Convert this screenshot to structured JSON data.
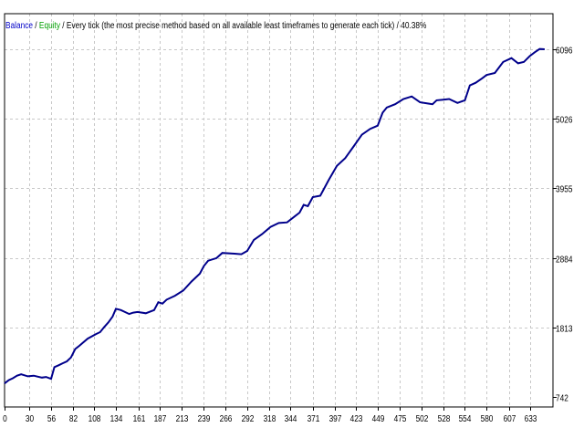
{
  "legend": {
    "balance_label": "Balance",
    "sep1": " / ",
    "equity_label": "Equity",
    "sep2": " / ",
    "model_text": "Every tick (the most precise method based on all available least timeframes to generate each tick)",
    "sep3": " / ",
    "quality_text": "40.38%"
  },
  "colors": {
    "background": "#ffffff",
    "grid": "#c8c8c8",
    "frame": "#000000",
    "balance_line": "#00008b",
    "balance_legend": "#0000c8",
    "equity_legend": "#00a000"
  },
  "chart_data": {
    "type": "line",
    "title": "",
    "xlabel": "",
    "ylabel": "",
    "x_ticks": [
      0,
      30,
      56,
      82,
      108,
      134,
      161,
      187,
      213,
      239,
      266,
      292,
      318,
      344,
      371,
      397,
      423,
      449,
      475,
      502,
      528,
      554,
      580,
      607,
      633
    ],
    "y_ticks": [
      742,
      1813,
      2884,
      3955,
      5026,
      6096
    ],
    "xlim": [
      0,
      660
    ],
    "ylim": [
      742,
      6096
    ],
    "grid": true,
    "legend_placement": "top-left",
    "series": [
      {
        "name": "Balance",
        "x": [
          0,
          5,
          10,
          15,
          20,
          28,
          35,
          45,
          50,
          56,
          60,
          65,
          70,
          75,
          80,
          85,
          90,
          100,
          110,
          115,
          120,
          125,
          130,
          134,
          140,
          150,
          155,
          160,
          170,
          180,
          185,
          190,
          195,
          205,
          215,
          225,
          235,
          240,
          245,
          255,
          262,
          275,
          285,
          292,
          300,
          310,
          320,
          330,
          340,
          350,
          355,
          360,
          365,
          371,
          380,
          390,
          400,
          410,
          420,
          430,
          440,
          449,
          455,
          460,
          470,
          480,
          490,
          500,
          510,
          515,
          520,
          528,
          535,
          545,
          554,
          560,
          567,
          575,
          580,
          590,
          600,
          610,
          618,
          625,
          632,
          638,
          644,
          650
        ],
        "y": [
          950,
          1000,
          1030,
          1070,
          1090,
          1060,
          1070,
          1040,
          1050,
          1020,
          1200,
          1230,
          1260,
          1290,
          1350,
          1480,
          1530,
          1640,
          1710,
          1740,
          1820,
          1890,
          1980,
          2100,
          2080,
          2020,
          2040,
          2050,
          2030,
          2080,
          2200,
          2180,
          2240,
          2300,
          2380,
          2520,
          2640,
          2760,
          2840,
          2880,
          2960,
          2950,
          2940,
          2990,
          3160,
          3250,
          3360,
          3420,
          3430,
          3530,
          3580,
          3700,
          3680,
          3820,
          3840,
          4080,
          4300,
          4420,
          4600,
          4780,
          4870,
          4920,
          5120,
          5200,
          5250,
          5330,
          5370,
          5280,
          5260,
          5250,
          5310,
          5320,
          5330,
          5270,
          5310,
          5540,
          5580,
          5650,
          5700,
          5730,
          5900,
          5960,
          5880,
          5900,
          5990,
          6050,
          6100,
          6096
        ]
      }
    ]
  }
}
